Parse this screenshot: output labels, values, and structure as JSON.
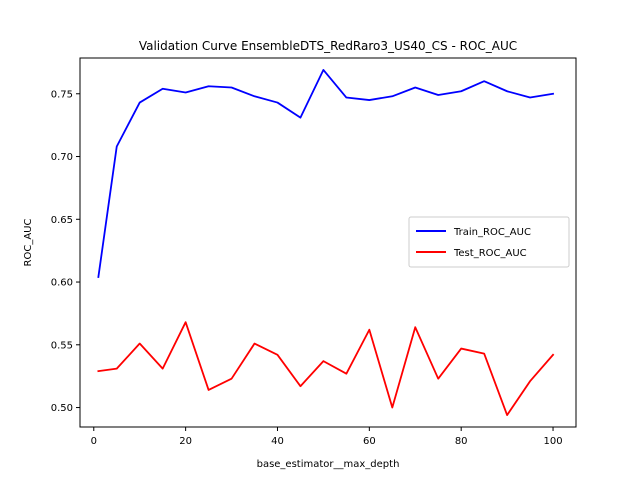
{
  "chart_data": {
    "type": "line",
    "title": "Validation Curve EnsembleDTS_RedRaro3_US40_CS - ROC_AUC",
    "xlabel": "base_estimator__max_depth",
    "ylabel": "ROC_AUC",
    "xlim": [
      -3,
      105
    ],
    "ylim": [
      0.4845,
      0.7785
    ],
    "xticks": [
      0,
      20,
      40,
      60,
      80,
      100
    ],
    "yticks": [
      0.5,
      0.55,
      0.6,
      0.65,
      0.7,
      0.75
    ],
    "ytick_labels": [
      "0.50",
      "0.55",
      "0.60",
      "0.65",
      "0.70",
      "0.75"
    ],
    "grid": false,
    "legend_position": "center-right",
    "x": [
      1,
      5,
      10,
      15,
      20,
      25,
      30,
      35,
      40,
      45,
      50,
      55,
      60,
      65,
      70,
      75,
      80,
      85,
      90,
      95,
      100
    ],
    "series": [
      {
        "name": "Train_ROC_AUC",
        "color": "#0000ff",
        "values": [
          0.604,
          0.708,
          0.743,
          0.754,
          0.751,
          0.756,
          0.755,
          0.748,
          0.743,
          0.731,
          0.769,
          0.747,
          0.745,
          0.748,
          0.755,
          0.749,
          0.752,
          0.76,
          0.752,
          0.747,
          0.75
        ]
      },
      {
        "name": "Test_ROC_AUC",
        "color": "#ff0000",
        "values": [
          0.529,
          0.531,
          0.551,
          0.531,
          0.568,
          0.514,
          0.523,
          0.551,
          0.542,
          0.517,
          0.537,
          0.527,
          0.562,
          0.5,
          0.564,
          0.523,
          0.547,
          0.543,
          0.494,
          0.521,
          0.542
        ]
      }
    ]
  }
}
